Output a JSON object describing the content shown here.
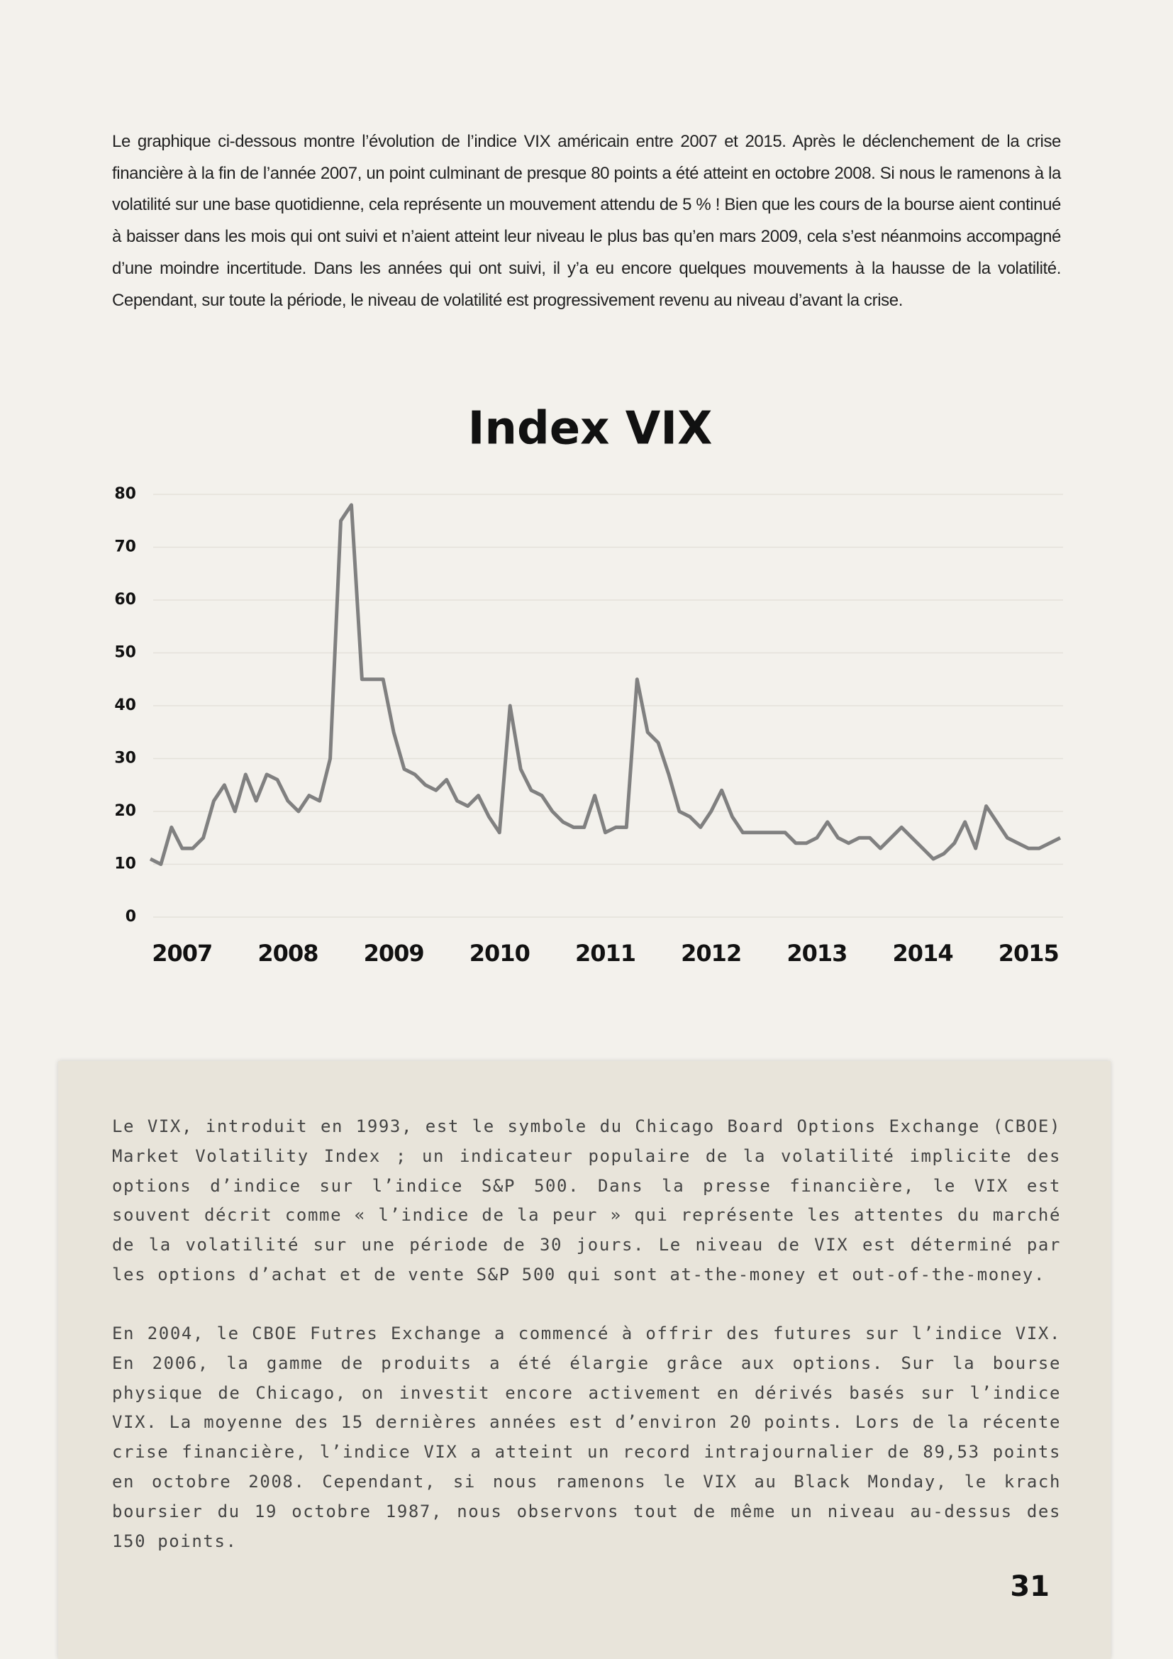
{
  "intro": "Le graphique ci-dessous montre l’évolution de l’indice VIX américain entre 2007 et 2015. Après le déclenchement de la crise financière à la fin de l’année 2007, un point culminant de presque 80 points a été atteint en octobre 2008. Si nous le ramenons à la volatilité sur une base quotidienne, cela représente un mouvement attendu de 5 % ! Bien que les cours de la bourse aient continué à baisser dans les mois qui ont suivi et n’aient atteint leur niveau le plus bas qu’en mars 2009, cela s’est néanmoins accompagné d’une moindre incertitude. Dans les années qui ont suivi, il y’a eu encore quelques mouvements à la hausse de la volatilité. Cependant, sur toute la période, le niveau de volatilité est progressivement revenu au niveau d’avant la crise.",
  "chart_data": {
    "type": "line",
    "title": "Index VIX",
    "color": "#808080",
    "grid": true,
    "xlim": [
      2006.7,
      2015.3
    ],
    "xticks": [
      2007,
      2008,
      2009,
      2010,
      2011,
      2012,
      2013,
      2014,
      2015
    ],
    "ylim": [
      0,
      80
    ],
    "yticks": [
      0,
      10,
      20,
      30,
      40,
      50,
      60,
      70,
      80
    ],
    "x": [
      2006.7,
      2006.8,
      2006.9,
      2007.0,
      2007.1,
      2007.2,
      2007.3,
      2007.4,
      2007.5,
      2007.6,
      2007.7,
      2007.8,
      2007.9,
      2008.0,
      2008.1,
      2008.2,
      2008.3,
      2008.4,
      2008.5,
      2008.6,
      2008.7,
      2008.8,
      2008.9,
      2009.0,
      2009.1,
      2009.2,
      2009.3,
      2009.4,
      2009.5,
      2009.6,
      2009.7,
      2009.8,
      2009.9,
      2010.0,
      2010.1,
      2010.2,
      2010.3,
      2010.4,
      2010.5,
      2010.6,
      2010.7,
      2010.8,
      2010.9,
      2011.0,
      2011.1,
      2011.2,
      2011.3,
      2011.4,
      2011.5,
      2011.6,
      2011.7,
      2011.8,
      2011.9,
      2012.0,
      2012.1,
      2012.2,
      2012.3,
      2012.4,
      2012.5,
      2012.6,
      2012.7,
      2012.8,
      2012.9,
      2013.0,
      2013.1,
      2013.2,
      2013.3,
      2013.4,
      2013.5,
      2013.6,
      2013.7,
      2013.8,
      2013.9,
      2014.0,
      2014.1,
      2014.2,
      2014.3,
      2014.4,
      2014.5,
      2014.6,
      2014.7,
      2014.8,
      2014.9,
      2015.0,
      2015.1,
      2015.2,
      2015.3
    ],
    "values": [
      11,
      10,
      17,
      13,
      13,
      15,
      22,
      25,
      20,
      27,
      22,
      27,
      26,
      22,
      20,
      23,
      22,
      30,
      75,
      78,
      45,
      45,
      45,
      35,
      28,
      27,
      25,
      24,
      26,
      22,
      21,
      23,
      19,
      16,
      40,
      28,
      24,
      23,
      20,
      18,
      17,
      17,
      23,
      16,
      17,
      17,
      45,
      35,
      33,
      27,
      20,
      19,
      17,
      20,
      24,
      19,
      16,
      16,
      16,
      16,
      16,
      14,
      14,
      15,
      18,
      15,
      14,
      15,
      15,
      13,
      15,
      17,
      15,
      13,
      11,
      12,
      14,
      18,
      13,
      21,
      18,
      15,
      14,
      13,
      13,
      14,
      15
    ]
  },
  "box": {
    "paragraphs": [
      "Le VIX, introduit en 1993, est le symbole du Chicago Board Options Exchange (CBOE) Market Volatility Index ; un indicateur populaire de la volatilité implicite des options d’indice sur l’indice S&P 500. Dans la presse financière, le VIX est souvent décrit comme « l’indice de la peur » qui représente les attentes du marché de la volatilité sur une période de 30 jours. Le niveau de VIX est déterminé par les options d’achat et de vente S&P 500 qui sont at-the-money et out-of-the-money.",
      "En 2004, le CBOE Futres Exchange a commencé à offrir des futures sur l’indice VIX. En 2006, la gamme de produits a été élargie grâce aux options. Sur la bourse physique de Chicago, on investit encore activement en dérivés basés sur l’indice VIX. La moyenne des 15 dernières années est d’environ 20 points. Lors de la récente crise financière, l’indice VIX a atteint un record intrajournalier de 89,53 points en octobre 2008. Cependant, si nous ramenons le VIX au Black Monday, le krach boursier du 19 octobre 1987, nous observons tout de même un niveau au-dessus des 150 points."
    ]
  },
  "page_number": "31"
}
